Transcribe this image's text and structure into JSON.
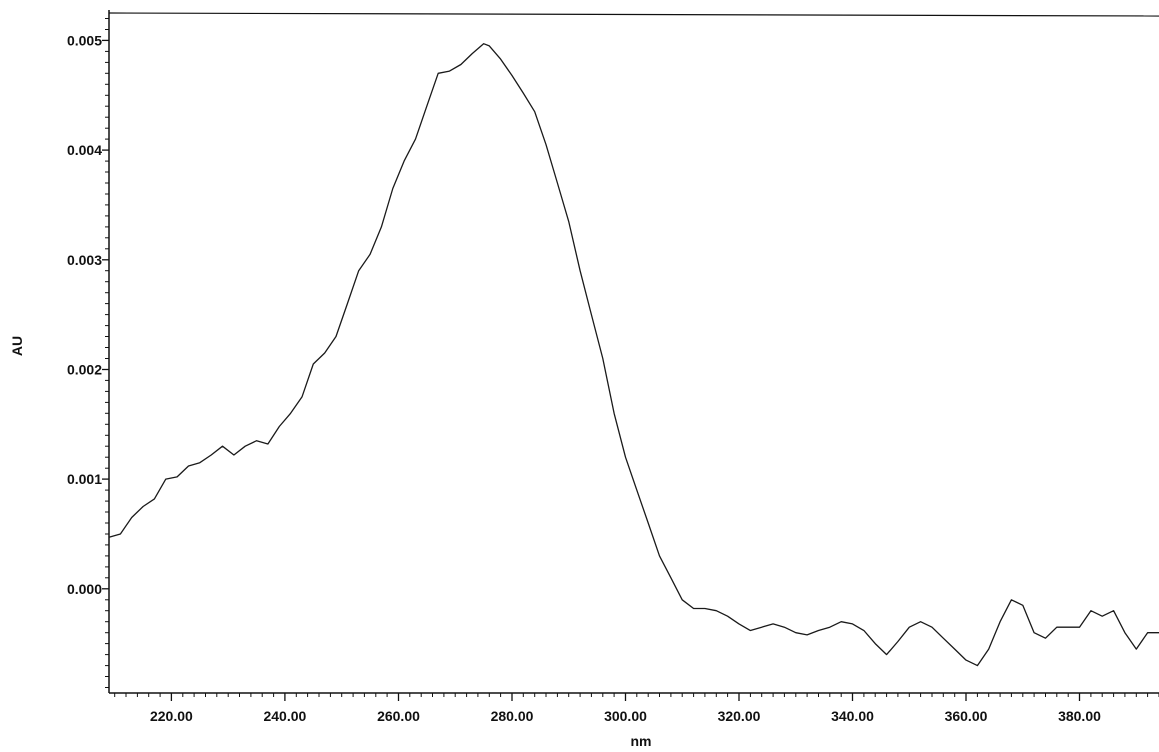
{
  "chart_data": {
    "type": "line",
    "title": "",
    "xlabel": "nm",
    "ylabel": "AU",
    "xlim": [
      209,
      394
    ],
    "ylim": [
      -0.00095,
      0.00525
    ],
    "grid": false,
    "legend": "none",
    "line_color": "#1a1a1a",
    "x_ticks": [
      {
        "value": 220,
        "label": "220.00"
      },
      {
        "value": 240,
        "label": "240.00"
      },
      {
        "value": 260,
        "label": "260.00"
      },
      {
        "value": 280,
        "label": "280.00"
      },
      {
        "value": 300,
        "label": "300.00"
      },
      {
        "value": 320,
        "label": "320.00"
      },
      {
        "value": 340,
        "label": "340.00"
      },
      {
        "value": 360,
        "label": "360.00"
      },
      {
        "value": 380,
        "label": "380.00"
      }
    ],
    "y_ticks": [
      {
        "value": 0.0,
        "label": "0.000"
      },
      {
        "value": 0.001,
        "label": "0.001"
      },
      {
        "value": 0.002,
        "label": "0.002"
      },
      {
        "value": 0.003,
        "label": "0.003"
      },
      {
        "value": 0.004,
        "label": "0.004"
      },
      {
        "value": 0.005,
        "label": "0.005"
      }
    ],
    "series": [
      {
        "x": [
          209,
          211,
          213,
          215,
          217,
          219,
          221,
          223,
          225,
          227,
          229,
          231,
          233,
          235,
          237,
          239,
          241,
          243,
          245,
          247,
          249,
          251,
          253,
          255,
          257,
          259,
          261,
          263,
          265,
          267,
          269,
          271,
          273,
          275,
          276,
          278,
          280,
          282,
          284,
          286,
          288,
          290,
          292,
          294,
          296,
          298,
          300,
          302,
          304,
          306,
          308,
          310,
          312,
          314,
          316,
          318,
          320,
          322,
          324,
          326,
          328,
          330,
          332,
          334,
          336,
          338,
          340,
          342,
          344,
          346,
          348,
          350,
          352,
          354,
          356,
          358,
          360,
          362,
          364,
          366,
          368,
          370,
          372,
          374,
          376,
          378,
          380,
          382,
          384,
          386,
          388,
          390,
          392,
          394
        ],
        "y": [
          0.00047,
          0.0005,
          0.00065,
          0.00075,
          0.00082,
          0.001,
          0.00102,
          0.00112,
          0.00115,
          0.00122,
          0.0013,
          0.00122,
          0.0013,
          0.00135,
          0.00132,
          0.00148,
          0.0016,
          0.00175,
          0.00205,
          0.00215,
          0.0023,
          0.0026,
          0.0029,
          0.00305,
          0.0033,
          0.00365,
          0.0039,
          0.0041,
          0.0044,
          0.0047,
          0.00472,
          0.00478,
          0.00488,
          0.00497,
          0.00495,
          0.00483,
          0.00468,
          0.00452,
          0.00435,
          0.00405,
          0.0037,
          0.00335,
          0.0029,
          0.0025,
          0.0021,
          0.0016,
          0.0012,
          0.0009,
          0.0006,
          0.0003,
          0.0001,
          -0.0001,
          -0.00018,
          -0.00018,
          -0.0002,
          -0.00025,
          -0.00032,
          -0.00038,
          -0.00035,
          -0.00032,
          -0.00035,
          -0.0004,
          -0.00042,
          -0.00038,
          -0.00035,
          -0.0003,
          -0.00032,
          -0.00038,
          -0.0005,
          -0.0006,
          -0.00048,
          -0.00035,
          -0.0003,
          -0.00035,
          -0.00045,
          -0.00055,
          -0.00065,
          -0.0007,
          -0.00055,
          -0.0003,
          -0.0001,
          -0.00015,
          -0.0004,
          -0.00045,
          -0.00035,
          -0.00035,
          -0.00035,
          -0.0002,
          -0.00025,
          -0.0002,
          -0.0004,
          -0.00055,
          -0.0004,
          -0.0004
        ]
      }
    ]
  }
}
